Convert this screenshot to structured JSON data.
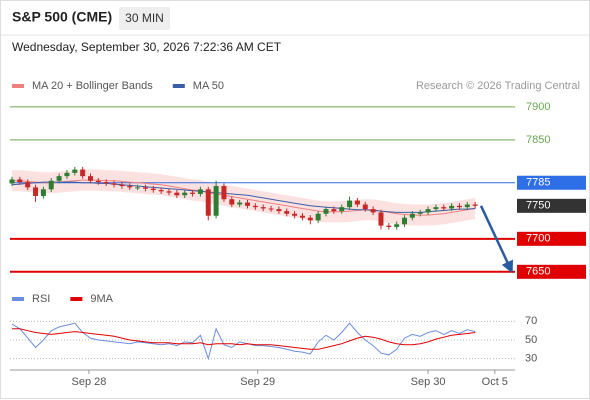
{
  "header": {
    "title": "S&P 500 (CME)",
    "timeframe": "30 MIN",
    "timestamp": "Wednesday, September 30, 2026 7:22:36 AM CET"
  },
  "chart_data": [
    {
      "type": "candlestick",
      "source": "Research © 2026 Trading Central",
      "xlim": [
        0,
        62.8
      ],
      "ylim": [
        7630,
        7918
      ],
      "up_color": "#2e7d32",
      "down_color": "#c62828",
      "open": [
        7784,
        7790,
        7786,
        7778,
        7765,
        7775,
        7788,
        7795,
        7800,
        7805,
        7795,
        7788,
        7786,
        7784,
        7782,
        7780,
        7778,
        7778,
        7776,
        7774,
        7772,
        7770,
        7766,
        7770,
        7768,
        7775,
        7735,
        7780,
        7760,
        7752,
        7755,
        7750,
        7748,
        7746,
        7745,
        7742,
        7738,
        7735,
        7732,
        7728,
        7738,
        7745,
        7742,
        7748,
        7758,
        7752,
        7745,
        7740,
        7720,
        7718,
        7722,
        7732,
        7738,
        7740,
        7745,
        7748,
        7746,
        7750,
        7748,
        7752
      ],
      "high": [
        7794,
        7794,
        7790,
        7782,
        7779,
        7792,
        7799,
        7804,
        7809,
        7809,
        7799,
        7792,
        7790,
        7788,
        7786,
        7784,
        7782,
        7782,
        7780,
        7778,
        7776,
        7774,
        7774,
        7774,
        7779,
        7779,
        7788,
        7784,
        7764,
        7759,
        7759,
        7754,
        7752,
        7750,
        7749,
        7746,
        7742,
        7739,
        7736,
        7742,
        7749,
        7749,
        7752,
        7764,
        7762,
        7756,
        7749,
        7744,
        7724,
        7726,
        7736,
        7742,
        7744,
        7749,
        7752,
        7752,
        7754,
        7754,
        7756,
        7756
      ],
      "low": [
        7780,
        7782,
        7774,
        7756,
        7761,
        7771,
        7784,
        7791,
        7796,
        7791,
        7784,
        7782,
        7780,
        7778,
        7776,
        7774,
        7774,
        7772,
        7770,
        7768,
        7766,
        7762,
        7762,
        7764,
        7764,
        7728,
        7731,
        7756,
        7748,
        7748,
        7746,
        7744,
        7742,
        7741,
        7738,
        7734,
        7731,
        7728,
        7722,
        7724,
        7734,
        7738,
        7738,
        7744,
        7748,
        7741,
        7736,
        7714,
        7714,
        7714,
        7718,
        7728,
        7734,
        7736,
        7741,
        7742,
        7742,
        7744,
        7744,
        7746
      ],
      "close": [
        7790,
        7786,
        7778,
        7765,
        7775,
        7788,
        7795,
        7800,
        7805,
        7795,
        7788,
        7786,
        7784,
        7782,
        7780,
        7778,
        7778,
        7776,
        7774,
        7772,
        7770,
        7766,
        7770,
        7768,
        7775,
        7735,
        7780,
        7760,
        7752,
        7755,
        7750,
        7748,
        7746,
        7745,
        7742,
        7738,
        7735,
        7732,
        7728,
        7738,
        7745,
        7742,
        7748,
        7758,
        7752,
        7745,
        7740,
        7720,
        7718,
        7722,
        7732,
        7738,
        7740,
        7745,
        7748,
        7746,
        7750,
        7748,
        7752,
        7750
      ],
      "series": [
        {
          "name": "MA 20 + Bollinger Bands",
          "color": "#f08080",
          "band_color": "#fbd9d9",
          "values": [
            7788,
            7788,
            7787,
            7786,
            7785,
            7785,
            7786,
            7787,
            7788,
            7789,
            7789,
            7789,
            7788,
            7788,
            7787,
            7786,
            7785,
            7784,
            7783,
            7782,
            7780,
            7778,
            7776,
            7774,
            7773,
            7770,
            7768,
            7766,
            7764,
            7762,
            7760,
            7758,
            7756,
            7754,
            7752,
            7750,
            7748,
            7746,
            7744,
            7742,
            7741,
            7741,
            7741,
            7742,
            7743,
            7744,
            7744,
            7742,
            7740,
            7738,
            7737,
            7736,
            7736,
            7736,
            7737,
            7738,
            7740,
            7742,
            7744,
            7746
          ],
          "band_upper": [
            7804,
            7804,
            7803,
            7802,
            7801,
            7801,
            7802,
            7803,
            7804,
            7805,
            7805,
            7805,
            7804,
            7804,
            7803,
            7802,
            7801,
            7800,
            7799,
            7798,
            7796,
            7794,
            7792,
            7790,
            7789,
            7786,
            7784,
            7782,
            7780,
            7778,
            7776,
            7774,
            7772,
            7770,
            7768,
            7766,
            7764,
            7762,
            7760,
            7758,
            7757,
            7757,
            7757,
            7758,
            7759,
            7760,
            7760,
            7758,
            7756,
            7754,
            7753,
            7752,
            7752,
            7752,
            7753,
            7754,
            7756,
            7758,
            7760,
            7762
          ],
          "band_lower": [
            7772,
            7772,
            7771,
            7770,
            7769,
            7769,
            7770,
            7771,
            7772,
            7773,
            7773,
            7773,
            7772,
            7772,
            7771,
            7770,
            7769,
            7768,
            7767,
            7766,
            7764,
            7762,
            7760,
            7758,
            7757,
            7754,
            7752,
            7750,
            7748,
            7746,
            7744,
            7742,
            7740,
            7738,
            7736,
            7734,
            7732,
            7730,
            7728,
            7726,
            7725,
            7725,
            7725,
            7726,
            7727,
            7728,
            7728,
            7726,
            7724,
            7722,
            7721,
            7720,
            7720,
            7720,
            7721,
            7722,
            7724,
            7726,
            7728,
            7730
          ]
        },
        {
          "name": "MA 50",
          "color": "#3a5ea8",
          "values": [
            7782,
            7783,
            7784,
            7785,
            7786,
            7786,
            7786,
            7786,
            7786,
            7785,
            7785,
            7784,
            7784,
            7783,
            7782,
            7781,
            7780,
            7779,
            7778,
            7777,
            7776,
            7775,
            7774,
            7773,
            7772,
            7771,
            7770,
            7769,
            7768,
            7767,
            7766,
            7764,
            7762,
            7760,
            7758,
            7756,
            7754,
            7752,
            7750,
            7749,
            7748,
            7747,
            7746,
            7745,
            7744,
            7744,
            7743,
            7742,
            7741,
            7740,
            7740,
            7740,
            7740,
            7741,
            7742,
            7743,
            7744,
            7745,
            7745,
            7746
          ]
        }
      ],
      "levels": [
        {
          "value": 7900,
          "color": "#6aa84f",
          "line": true,
          "box": false
        },
        {
          "value": 7850,
          "color": "#6aa84f",
          "line": true,
          "box": false
        },
        {
          "value": 7785,
          "color": "#2e6ee6",
          "line": true,
          "box": true
        },
        {
          "value": 7750,
          "color": "#333333",
          "line": false,
          "box": true
        },
        {
          "value": 7700,
          "color": "#e00000",
          "line": true,
          "box": true
        },
        {
          "value": 7650,
          "color": "#e00000",
          "line": true,
          "box": true
        }
      ],
      "forecast": {
        "from": 7750,
        "to": 7650,
        "color": "#2c5aa0"
      }
    },
    {
      "type": "line",
      "xlim": [
        0,
        62.8
      ],
      "ylim": [
        20,
        80
      ],
      "yticks": [
        70,
        50,
        30
      ],
      "grid": true,
      "xticks": [
        {
          "value": 9.8,
          "label": "Sep 28"
        },
        {
          "value": 31.3,
          "label": "Sep 29"
        },
        {
          "value": 53.0,
          "label": "Sep 30"
        },
        {
          "value": 61.5,
          "label": "Oct 5"
        }
      ],
      "series": [
        {
          "name": "RSI",
          "color": "#6c8ee0",
          "values": [
            67,
            62,
            52,
            42,
            50,
            60,
            64,
            66,
            68,
            58,
            52,
            50,
            49,
            48,
            47,
            46,
            48,
            47,
            46,
            45,
            46,
            44,
            48,
            47,
            55,
            30,
            62,
            45,
            42,
            48,
            46,
            44,
            44,
            43,
            42,
            40,
            38,
            37,
            35,
            48,
            55,
            50,
            58,
            68,
            58,
            50,
            44,
            36,
            34,
            40,
            52,
            56,
            54,
            58,
            60,
            56,
            60,
            57,
            61,
            59
          ]
        },
        {
          "name": "9MA",
          "color": "#e00000",
          "values": [
            62,
            62,
            60,
            58,
            57,
            56,
            57,
            58,
            59,
            58,
            57,
            56,
            55,
            54,
            52,
            50,
            49,
            48,
            47,
            47,
            47,
            46,
            46,
            46,
            47,
            45,
            46,
            46,
            46,
            45,
            46,
            45,
            45,
            45,
            44,
            43,
            42,
            41,
            40,
            40,
            42,
            44,
            46,
            49,
            52,
            54,
            53,
            51,
            48,
            46,
            45,
            45,
            46,
            48,
            51,
            53,
            55,
            56,
            57,
            58
          ]
        }
      ]
    }
  ]
}
